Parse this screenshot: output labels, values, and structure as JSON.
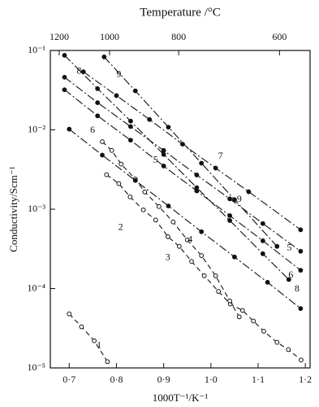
{
  "chart_data": {
    "type": "line",
    "title": "Temperature /°C",
    "xlabel": "1000T⁻¹/K⁻¹",
    "ylabel": "Conductivity/Scm⁻¹",
    "xlim": [
      0.66,
      1.21
    ],
    "xticks": [
      {
        "value": 0.7,
        "label": "0·7"
      },
      {
        "value": 0.8,
        "label": "0·8"
      },
      {
        "value": 0.9,
        "label": "0·9"
      },
      {
        "value": 1.0,
        "label": "1·0"
      },
      {
        "value": 1.1,
        "label": "1·1"
      },
      {
        "value": 1.2,
        "label": "1·2"
      }
    ],
    "x2ticks": [
      1200,
      1000,
      800,
      600
    ],
    "ylim": [
      1e-05,
      0.1
    ],
    "ylog": true,
    "yticks": [
      {
        "value": 0.1,
        "label": "10⁻¹"
      },
      {
        "value": 0.01,
        "label": "10⁻²"
      },
      {
        "value": 0.001,
        "label": "10⁻³"
      },
      {
        "value": 0.0001,
        "label": "10⁻⁴"
      },
      {
        "value": 1e-05,
        "label": "10⁻⁵"
      }
    ],
    "grid": false,
    "series": [
      {
        "name": "1",
        "color": "#111111",
        "line_style": "dashed",
        "marker": "open",
        "x": [
          0.7,
          0.726,
          0.753,
          0.781
        ],
        "values": [
          4.8e-05,
          3.3e-05,
          2.2e-05,
          1.2e-05
        ]
      },
      {
        "name": "2",
        "color": "#111111",
        "line_style": "dashed",
        "marker": "open",
        "x": [
          0.779,
          0.805,
          0.829,
          0.857,
          0.883,
          0.909,
          0.933,
          0.959,
          0.986,
          1.016,
          1.041,
          1.067,
          1.09,
          1.112,
          1.14,
          1.164,
          1.191
        ],
        "values": [
          0.00272,
          0.0021,
          0.00143,
          0.00098,
          0.00073,
          0.00045,
          0.00034,
          0.00022,
          0.000145,
          9.2e-05,
          6.4e-05,
          5.3e-05,
          3.9e-05,
          2.9e-05,
          2.1e-05,
          1.7e-05,
          1.26e-05
        ]
      },
      {
        "name": "3",
        "color": "#111111",
        "line_style": "dashed",
        "marker": "open",
        "x": [
          0.77,
          0.79,
          0.81,
          0.84,
          0.86,
          0.89,
          0.92,
          0.95,
          0.98,
          1.01,
          1.04,
          1.06
        ],
        "values": [
          0.0071,
          0.0055,
          0.0037,
          0.0024,
          0.00165,
          0.00108,
          0.00069,
          0.00041,
          0.00026,
          0.000145,
          7e-05,
          4.4e-05
        ]
      },
      {
        "name": "4",
        "color": "#111111",
        "line_style": "dash-dot",
        "marker": "filled",
        "x": [
          0.7,
          0.77,
          0.84,
          0.91,
          0.98,
          1.05,
          1.12,
          1.19
        ],
        "values": [
          0.0102,
          0.0048,
          0.0023,
          0.0011,
          0.00052,
          0.00025,
          0.00012,
          5.6e-05
        ]
      },
      {
        "name": "5",
        "color": "#111111",
        "line_style": "dash-dot",
        "marker": "filled",
        "x": [
          0.69,
          0.76,
          0.83,
          0.9,
          0.97,
          1.04,
          1.11,
          1.19
        ],
        "values": [
          0.046,
          0.022,
          0.011,
          0.0055,
          0.0027,
          0.00135,
          0.00066,
          0.000295
        ]
      },
      {
        "name": "6",
        "color": "#111111",
        "line_style": "dash-dot",
        "marker": "filled",
        "x": [
          0.69,
          0.76,
          0.83,
          0.9,
          0.97,
          1.04,
          1.11,
          1.19
        ],
        "values": [
          0.032,
          0.015,
          0.0074,
          0.0035,
          0.0017,
          0.00083,
          0.0004,
          0.00017
        ]
      },
      {
        "name": "7",
        "color": "#111111",
        "line_style": "dash-dot",
        "marker": "filled",
        "x": [
          0.73,
          0.8,
          0.87,
          0.94,
          1.01,
          1.08,
          1.19
        ],
        "values": [
          0.054,
          0.027,
          0.0135,
          0.0066,
          0.0033,
          0.00166,
          0.00055
        ]
      },
      {
        "name": "8",
        "color": "#111111",
        "line_style": "dash-dot",
        "marker": "filled",
        "x": [
          0.69,
          0.76,
          0.83,
          0.9,
          0.97,
          1.04,
          1.11,
          1.165
        ],
        "values": [
          0.087,
          0.033,
          0.0129,
          0.0049,
          0.00187,
          0.00072,
          0.000275,
          0.00013
        ]
      },
      {
        "name": "9",
        "color": "#111111",
        "line_style": "dash-dot",
        "marker": "filled",
        "x": [
          0.774,
          0.84,
          0.91,
          0.98,
          1.05,
          1.14
        ],
        "values": [
          0.083,
          0.031,
          0.0108,
          0.0038,
          0.00132,
          0.00034
        ]
      }
    ]
  }
}
